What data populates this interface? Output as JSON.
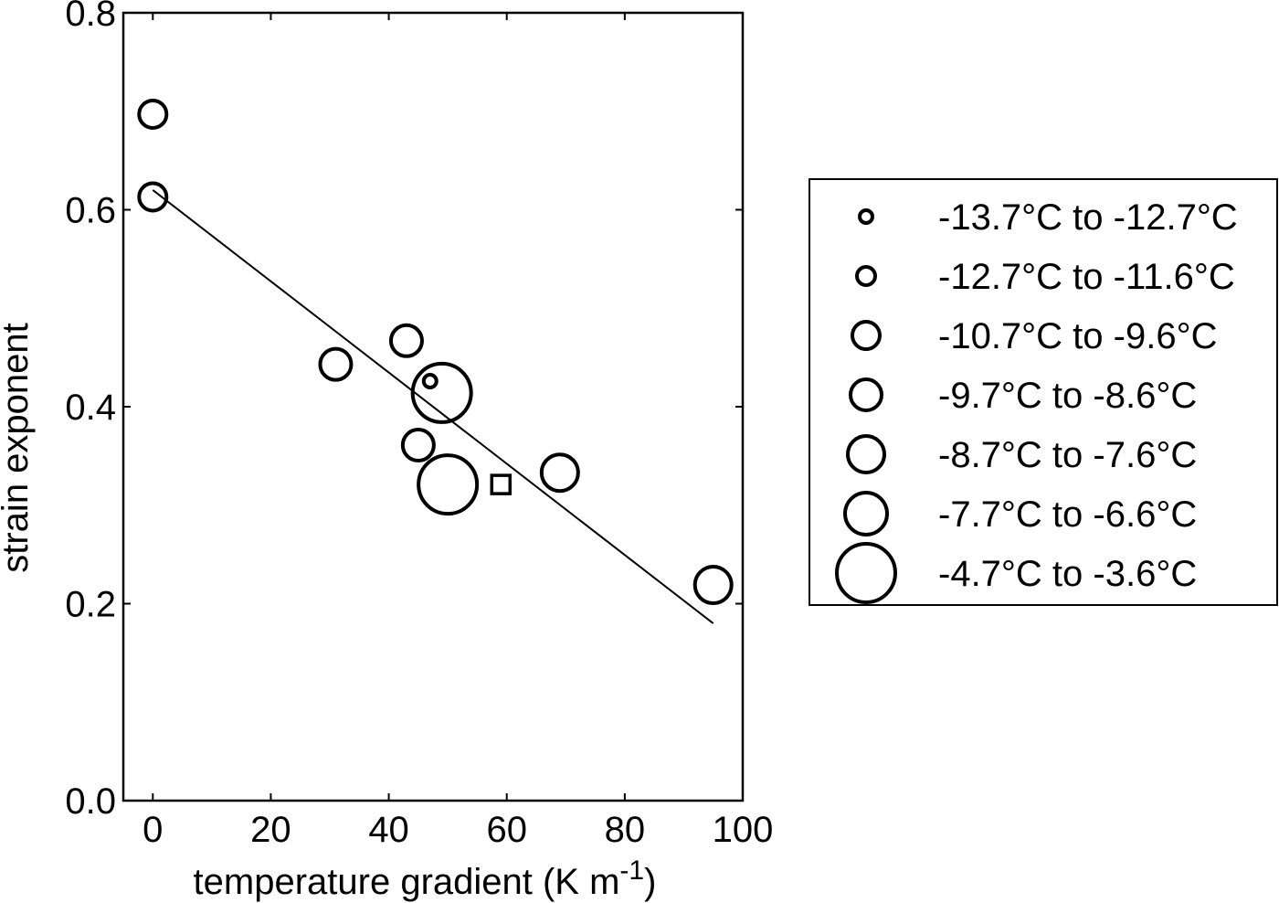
{
  "chart_data": {
    "type": "scatter",
    "xlabel": "temperature gradient (K m",
    "xlabel_sup": "-1",
    "xlabel_end": ")",
    "ylabel": "strain exponent",
    "xlim": [
      -5,
      100
    ],
    "ylim": [
      0.0,
      0.8
    ],
    "x_ticks": [
      0,
      20,
      40,
      60,
      80,
      100
    ],
    "x_tick_labels": [
      "0",
      "20",
      "40",
      "60",
      "80",
      "100"
    ],
    "y_ticks": [
      0.0,
      0.2,
      0.4,
      0.6,
      0.8
    ],
    "y_tick_labels": [
      "0.0",
      "0.2",
      "0.4",
      "0.6",
      "0.8"
    ],
    "grid": false,
    "legend_position": "right",
    "legend": [
      {
        "label": "-13.7°C to -12.7°C",
        "size_class": 1
      },
      {
        "label": "-12.7°C to -11.6°C",
        "size_class": 2
      },
      {
        "label": "-10.7°C to -9.6°C",
        "size_class": 3
      },
      {
        "label": "-9.7°C to -8.6°C",
        "size_class": 4
      },
      {
        "label": "-8.7°C to -7.6°C",
        "size_class": 5
      },
      {
        "label": "-7.7°C to -6.6°C",
        "size_class": 6
      },
      {
        "label": "-4.7°C to -3.6°C",
        "size_class": 7
      }
    ],
    "points": [
      {
        "x": 0,
        "y": 0.697,
        "size_class": 3,
        "marker": "circle"
      },
      {
        "x": 0,
        "y": 0.613,
        "size_class": 3,
        "marker": "circle"
      },
      {
        "x": 31,
        "y": 0.443,
        "size_class": 4,
        "marker": "circle"
      },
      {
        "x": 43,
        "y": 0.467,
        "size_class": 4,
        "marker": "circle"
      },
      {
        "x": 47,
        "y": 0.426,
        "size_class": 1,
        "marker": "circle"
      },
      {
        "x": 49,
        "y": 0.414,
        "size_class": 7,
        "marker": "circle"
      },
      {
        "x": 45,
        "y": 0.361,
        "size_class": 4,
        "marker": "circle"
      },
      {
        "x": 50,
        "y": 0.321,
        "size_class": 7,
        "marker": "circle"
      },
      {
        "x": 59,
        "y": 0.321,
        "marker": "square"
      },
      {
        "x": 69,
        "y": 0.333,
        "size_class": 5,
        "marker": "circle"
      },
      {
        "x": 95,
        "y": 0.219,
        "size_class": 5,
        "marker": "circle"
      }
    ],
    "fit_line": {
      "x": [
        0,
        95
      ],
      "y": [
        0.62,
        0.18
      ]
    },
    "colors": {
      "ink": "#000000",
      "background": "#ffffff"
    }
  }
}
